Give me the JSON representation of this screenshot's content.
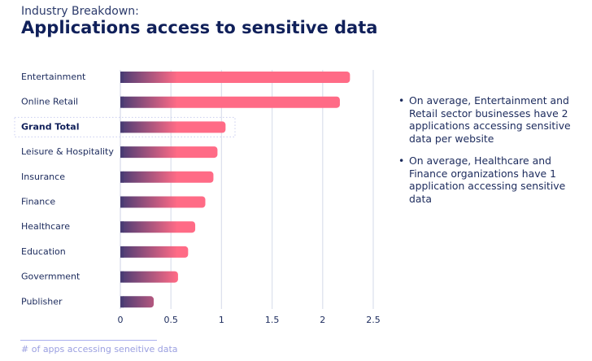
{
  "header": {
    "subtitle": "Industry Breakdown:",
    "title": "Applications access to sensitive data"
  },
  "chart_data": {
    "type": "bar",
    "orientation": "horizontal",
    "categories": [
      "Entertainment",
      "Online Retail",
      "Grand Total",
      "Leisure & Hospitality",
      "Insurance",
      "Finance",
      "Healthcare",
      "Education",
      "Govermment",
      "Publisher"
    ],
    "values": [
      2.27,
      2.17,
      1.04,
      0.96,
      0.92,
      0.84,
      0.74,
      0.67,
      0.57,
      0.33
    ],
    "highlight": "Grand Total",
    "xlim": [
      0,
      2.5
    ],
    "xticks": [
      0,
      0.5,
      1,
      1.5,
      2,
      2.5
    ],
    "xtick_labels": [
      "0",
      "0.5",
      "1",
      "1.5",
      "2",
      "2.5"
    ],
    "xlabel": "# of apps accessing seneitive data",
    "grid": true,
    "colors": {
      "gradient_start": "#4a3c74",
      "gradient_end": "#ff6b86",
      "grid": "#dde1ee",
      "label": "#1b2a5c"
    }
  },
  "notes": [
    "On average, Entertainment and Retail sector businesses have 2 applications accessing sensitive data per website",
    "On average, Healthcare and Finance organizations have 1 application accessing sensitive data"
  ]
}
